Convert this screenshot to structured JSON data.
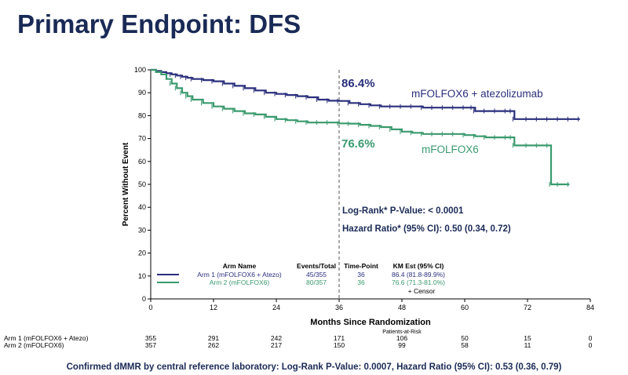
{
  "title": "Primary Endpoint: DFS",
  "footnote": "Confirmed dMMR by central reference laboratory: Log-Rank P-Value: 0.0007, Hazard Ratio (95% CI): 0.53 (0.36, 0.79)",
  "chart_data": {
    "type": "line",
    "xlabel": "Months Since Randomization",
    "ylabel": "Percent Without Event",
    "xlim": [
      0,
      84
    ],
    "ylim": [
      0,
      100
    ],
    "xticks": [
      0,
      12,
      24,
      36,
      48,
      60,
      72,
      84
    ],
    "yticks": [
      0,
      10,
      20,
      30,
      40,
      50,
      60,
      70,
      80,
      90,
      100
    ],
    "grid": false,
    "reference_line_x": 36,
    "series": [
      {
        "name": "mFOLFOX6 + atezolizumab",
        "color": "#2a2f7c",
        "x": [
          0,
          1,
          2,
          3,
          4,
          5,
          6,
          7,
          8,
          10,
          12,
          14,
          16,
          18,
          20,
          22,
          24,
          26,
          28,
          30,
          32,
          34,
          36,
          38,
          40,
          42,
          44,
          46,
          48,
          50,
          52,
          54,
          56,
          58,
          60,
          61.5,
          62,
          64,
          66,
          68,
          69,
          69.5,
          72,
          74,
          76,
          78,
          80,
          82
        ],
        "y": [
          100,
          99.5,
          99,
          98.5,
          98,
          97.5,
          97,
          96.5,
          96,
          95.5,
          95,
          94,
          93,
          92,
          91,
          90,
          89.5,
          89,
          88.5,
          88,
          87,
          86.5,
          86.4,
          85.5,
          85,
          84.5,
          84,
          84,
          84,
          84,
          83.5,
          83.5,
          83.5,
          83.5,
          83.5,
          83.5,
          82,
          82,
          82,
          82,
          82,
          78.5,
          78.5,
          78.5,
          78.5,
          78.5,
          78.5,
          78.5
        ]
      },
      {
        "name": "mFOLFOX6",
        "color": "#3a9a6e",
        "x": [
          0,
          1,
          2,
          3,
          4,
          5,
          6,
          7,
          8,
          10,
          12,
          14,
          16,
          18,
          20,
          22,
          24,
          26,
          28,
          30,
          32,
          34,
          36,
          38,
          40,
          42,
          44,
          46,
          48,
          50,
          52,
          54,
          56,
          58,
          60,
          62,
          64,
          66,
          68,
          69,
          69.5,
          72,
          74,
          76,
          76.5,
          78,
          80
        ],
        "y": [
          100,
          99,
          98,
          96,
          94,
          92,
          90,
          88.5,
          87,
          85.5,
          84,
          83,
          82,
          81,
          80.5,
          79.5,
          78.5,
          78,
          77.5,
          77,
          77,
          77,
          76.6,
          76.5,
          76,
          75.5,
          75,
          74,
          73,
          72.5,
          72,
          72,
          72,
          72,
          71.5,
          71,
          70.5,
          70.5,
          70.5,
          70.5,
          67,
          67,
          67,
          67,
          50,
          50,
          50
        ]
      }
    ],
    "annotations": {
      "arm1_value": "86.4%",
      "arm1_label": "mFOLFOX6 + atezolizumab",
      "arm2_value": "76.6%",
      "arm2_label": "mFOLFOX6",
      "log_rank": "Log-Rank* P-Value: < 0.0001",
      "hazard_ratio": "Hazard Ratio* (95% CI): 0.50 (0.34, 0.72)"
    },
    "legend_table": {
      "headers": [
        "Arm Name",
        "Events/Total",
        "Time-Point",
        "KM Est (95% CI)"
      ],
      "rows": [
        {
          "arm": "Arm 1 (mFOLFOX6 + Atezo)",
          "events": "45/355",
          "timepoint": "36",
          "km": "86.4 (81.8-89.9%)",
          "color": "#2a2f7c"
        },
        {
          "arm": "Arm 2 (mFOLFOX6)",
          "events": "80/357",
          "timepoint": "36",
          "km": "76.6 (71.3-81.0%)",
          "color": "#3a9a6e"
        }
      ],
      "censor_note": "+ Censor"
    },
    "risk_table": {
      "title": "Patients-at-Risk",
      "rows": [
        {
          "label": "Arm 1 (mFOLFOX6 + Atezo)",
          "values": [
            "355",
            "291",
            "242",
            "171",
            "106",
            "50",
            "15",
            "0"
          ]
        },
        {
          "label": "Arm 2 (mFOLFOX6)",
          "values": [
            "357",
            "262",
            "217",
            "150",
            "99",
            "58",
            "11",
            "0"
          ]
        }
      ]
    }
  }
}
